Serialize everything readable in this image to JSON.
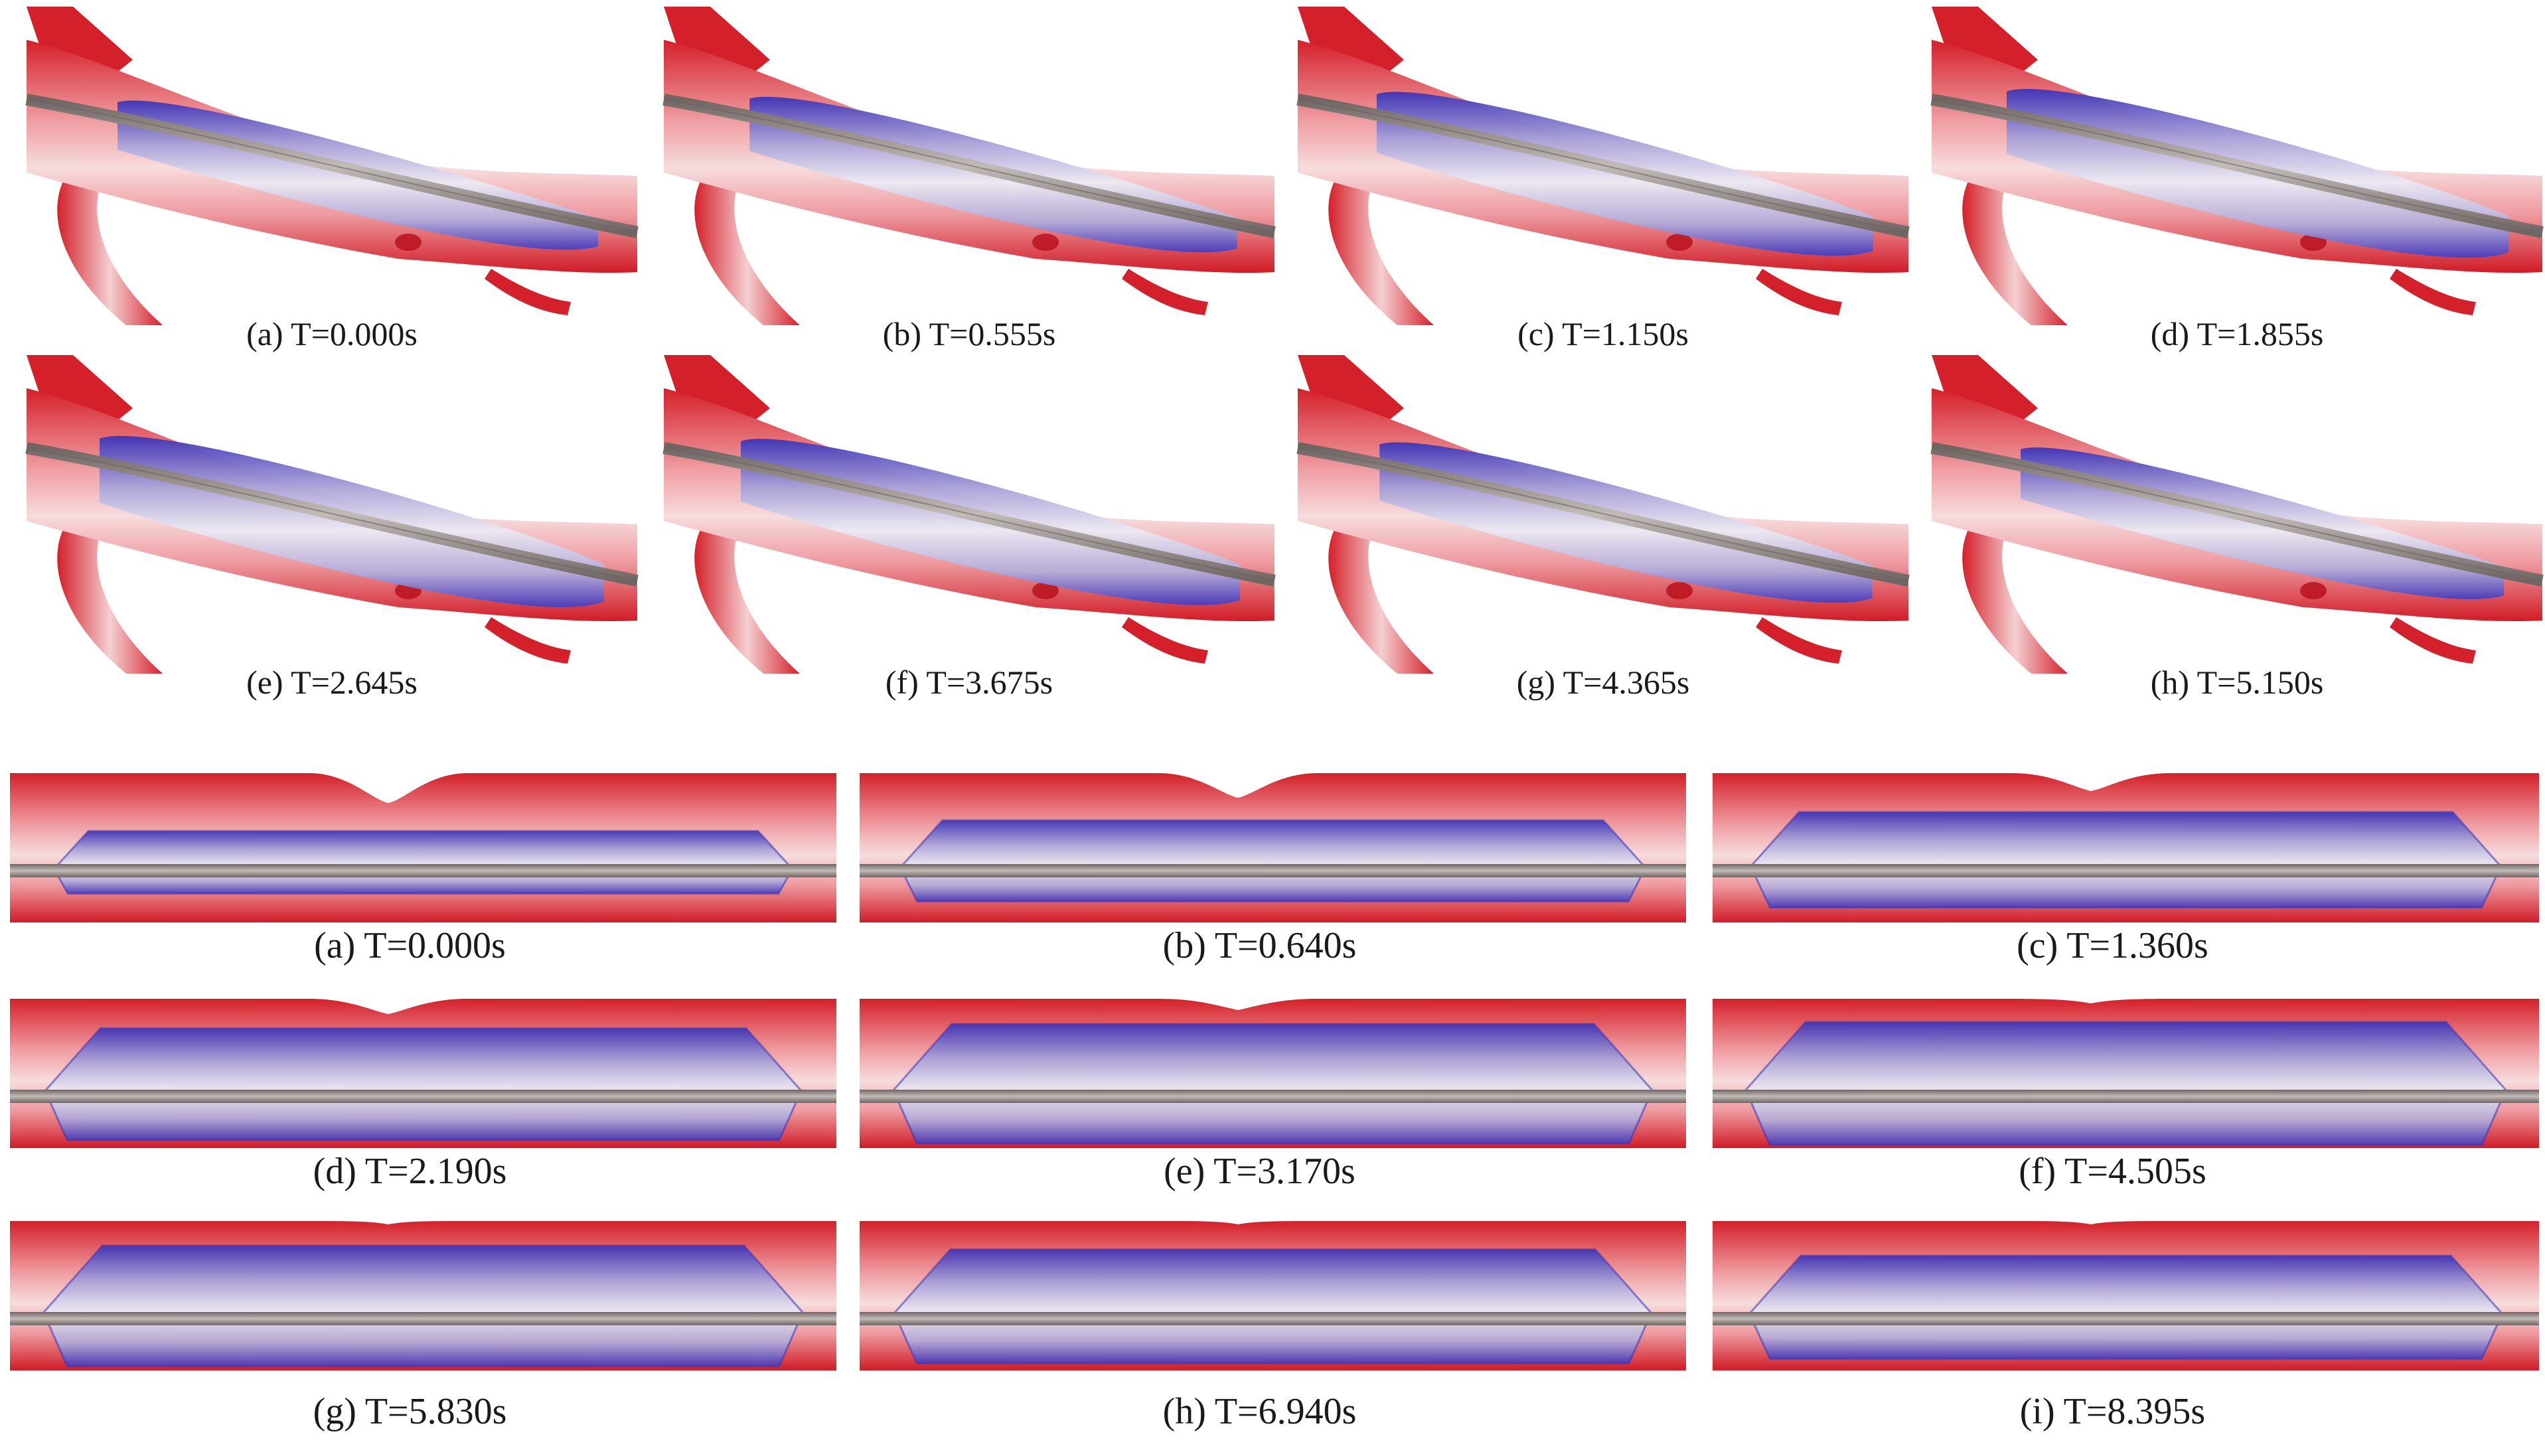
{
  "top_panel": {
    "captions": [
      "(a) T=0.000s",
      "(b) T=0.555s",
      "(c) T=1.150s",
      "(d) T=1.855s",
      "(e) T=2.645s",
      "(f) T=3.675s",
      "(g) T=4.365s",
      "(h) T=5.150s"
    ],
    "balloon_inflation": [
      0.55,
      0.68,
      0.85,
      0.95,
      1.0,
      0.9,
      0.78,
      0.6
    ]
  },
  "bottom_panel": {
    "captions": [
      "(a) T=0.000s",
      "(b) T=0.640s",
      "(c) T=1.360s",
      "(d) T=2.190s",
      "(e) T=3.170s",
      "(f) T=4.505s",
      "(g) T=5.830s",
      "(h) T=6.940s",
      "(i) T=8.395s"
    ],
    "balloon_inflation": [
      0.45,
      0.62,
      0.75,
      0.9,
      0.97,
      1.0,
      0.98,
      0.92,
      0.82
    ],
    "stenosis_depth": [
      1.0,
      0.8,
      0.55,
      0.45,
      0.3,
      0.05,
      0.0,
      0.0,
      0.0
    ]
  },
  "colors": {
    "vessel": "#d4202a",
    "vessel_light": "#f6d6d8",
    "balloon": "#3b33b8",
    "balloon_light": "#e9e6f2",
    "guidewire": "#9a8f8c"
  }
}
